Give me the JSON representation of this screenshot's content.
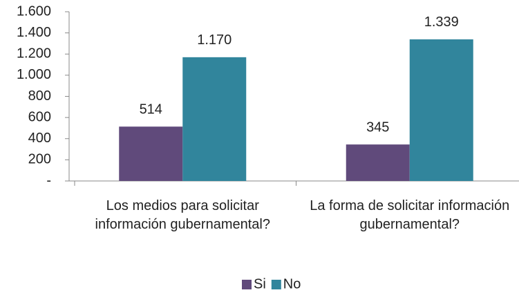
{
  "chart_data": {
    "type": "bar",
    "categories": [
      "Los medios para solicitar información gubernamental?",
      "La forma de solicitar información gubernamental?"
    ],
    "series": [
      {
        "name": "Si",
        "color": "#604a7b",
        "values": [
          514,
          345
        ],
        "value_labels": [
          "514",
          "345"
        ]
      },
      {
        "name": "No",
        "color": "#31859c",
        "values": [
          1170,
          1339
        ],
        "value_labels": [
          "1.170",
          "1.339"
        ]
      }
    ],
    "ylim": [
      0,
      1600
    ],
    "yticks": [
      {
        "value": 0,
        "label": "-"
      },
      200,
      400,
      600,
      800,
      {
        "value": 1000,
        "label": "1.000"
      },
      {
        "value": 1200,
        "label": "1.200"
      },
      {
        "value": 1400,
        "label": "1.400"
      },
      {
        "value": 1600,
        "label": "1.600"
      }
    ],
    "legend": "bottom"
  }
}
